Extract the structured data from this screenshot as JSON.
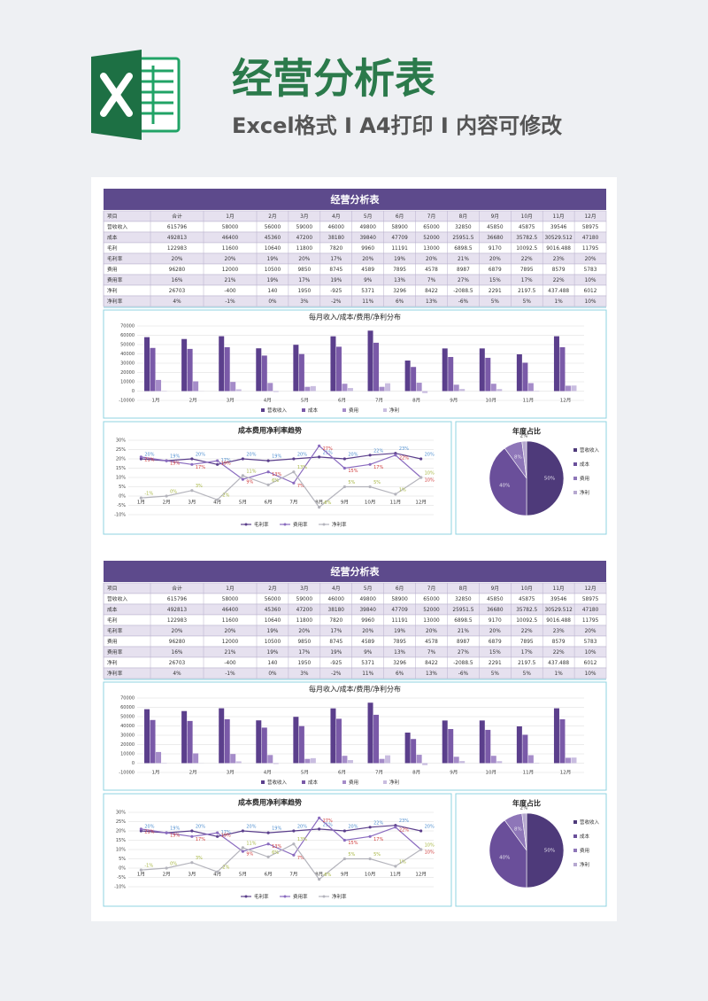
{
  "header": {
    "title": "经营分析表",
    "subtitle": "Excel格式 I A4打印 I 内容可修改"
  },
  "sheet": {
    "title": "经营分析表"
  },
  "table": {
    "rows": [
      [
        "项目",
        "合计",
        "1月",
        "2月",
        "3月",
        "4月",
        "5月",
        "6月",
        "7月",
        "8月",
        "9月",
        "10月",
        "11月",
        "12月"
      ],
      [
        "营收收入",
        615796,
        58000,
        56000,
        59000,
        46000,
        49800,
        58900,
        65000,
        32850,
        45850,
        45875,
        39546,
        58975
      ],
      [
        "成本",
        492813,
        46400,
        45360,
        47200,
        38180,
        39840,
        47709,
        52000,
        25951.5,
        36680,
        35782.5,
        30529.512,
        47180
      ],
      [
        "毛利",
        122983,
        11600,
        10640,
        11800,
        7820,
        9960,
        11191,
        13000,
        6898.5,
        9170,
        10092.5,
        9016.488,
        11795
      ],
      [
        "毛利率",
        "20%",
        "20%",
        "19%",
        "20%",
        "17%",
        "20%",
        "19%",
        "20%",
        "21%",
        "20%",
        "22%",
        "23%",
        "20%"
      ],
      [
        "费用",
        96280,
        12000,
        10500,
        9850,
        8745,
        4589,
        7895,
        4578,
        8987,
        6879,
        7895,
        8579,
        5783
      ],
      [
        "费用率",
        "16%",
        "21%",
        "19%",
        "17%",
        "19%",
        "9%",
        "13%",
        "7%",
        "27%",
        "15%",
        "17%",
        "22%",
        "10%"
      ],
      [
        "净利",
        26703,
        -400,
        140,
        1950,
        -925,
        5371,
        3296,
        8422,
        -2088.5,
        2291,
        2197.5,
        437.488,
        6012
      ],
      [
        "净利率",
        "4%",
        "-1%",
        "0%",
        "3%",
        "-2%",
        "11%",
        "6%",
        "13%",
        "-6%",
        "5%",
        "5%",
        "1%",
        "10%"
      ]
    ]
  },
  "chart_data": [
    {
      "type": "bar",
      "title": "每月收入/成本/费用/净利分布",
      "categories": [
        "1月",
        "2月",
        "3月",
        "4月",
        "5月",
        "6月",
        "7月",
        "8月",
        "9月",
        "10月",
        "11月",
        "12月"
      ],
      "series": [
        {
          "name": "营收收入",
          "color": "#5b3f8c",
          "values": [
            58000,
            56000,
            59000,
            46000,
            49800,
            58900,
            65000,
            32850,
            45850,
            45875,
            39546,
            58975
          ]
        },
        {
          "name": "成本",
          "color": "#7a5aa8",
          "values": [
            46400,
            45360,
            47200,
            38180,
            39840,
            47709,
            52000,
            25951.5,
            36680,
            35782.5,
            30529.512,
            47180
          ]
        },
        {
          "name": "费用",
          "color": "#a58cc9",
          "values": [
            12000,
            10500,
            9850,
            8745,
            4589,
            7895,
            4578,
            8987,
            6879,
            7895,
            8579,
            5783
          ]
        },
        {
          "name": "净利",
          "color": "#c9bde0",
          "values": [
            -400,
            140,
            1950,
            -925,
            5371,
            3296,
            8422,
            -2088.5,
            2291,
            2197.5,
            437.488,
            6012
          ]
        }
      ],
      "ylim": [
        -10000,
        70000
      ],
      "yticks": [
        -10000,
        0,
        10000,
        20000,
        30000,
        40000,
        50000,
        60000,
        70000
      ],
      "grid": true
    },
    {
      "type": "line",
      "title": "成本费用净利率趋势",
      "categories": [
        "1月",
        "2月",
        "3月",
        "4月",
        "5月",
        "6月",
        "7月",
        "8月",
        "9月",
        "10月",
        "11月",
        "12月"
      ],
      "series": [
        {
          "name": "毛利率",
          "color": "#5b3f8c",
          "label_color": "#4f8fd0",
          "values": [
            20,
            19,
            20,
            17,
            20,
            19,
            20,
            21,
            20,
            22,
            23,
            20
          ],
          "value_labels": [
            "20%",
            "19%",
            "20%",
            "17%",
            "20%",
            "19%",
            "20%",
            "21%",
            "20%",
            "22%",
            "23%",
            "20%"
          ]
        },
        {
          "name": "费用率",
          "color": "#8a6bbf",
          "label_color": "#d03a3a",
          "values": [
            21,
            19,
            17,
            19,
            9,
            13,
            7,
            27,
            15,
            17,
            22,
            10
          ],
          "value_labels": [
            "21%",
            "19%",
            "17%",
            "19%",
            "9%",
            "13%",
            "7%",
            "27%",
            "15%",
            "17%",
            "22%",
            "10%"
          ]
        },
        {
          "name": "净利率",
          "color": "#b4b4bc",
          "label_color": "#a5b53e",
          "values": [
            -1,
            0,
            3,
            -2,
            11,
            6,
            13,
            -6,
            5,
            5,
            1,
            10
          ],
          "value_labels": [
            "-1%",
            "0%",
            "3%",
            "-2%",
            "11%",
            "6%",
            "13%",
            "-6%",
            "5%",
            "5%",
            "1%",
            "10%"
          ]
        }
      ],
      "ylim": [
        -10,
        30
      ],
      "yticks": [
        {
          "value": -10,
          "label": "-10%"
        },
        {
          "value": -5,
          "label": "-5%"
        },
        {
          "value": 0,
          "label": "0%"
        },
        {
          "value": 5,
          "label": "5%"
        },
        {
          "value": 10,
          "label": "10%"
        },
        {
          "value": 15,
          "label": "15%"
        },
        {
          "value": 20,
          "label": "20%"
        },
        {
          "value": 25,
          "label": "25%"
        },
        {
          "value": 30,
          "label": "30%"
        }
      ],
      "grid": true
    },
    {
      "type": "pie",
      "title": "年度占比",
      "categories": [
        "营收收入",
        "成本",
        "费用",
        "净利"
      ],
      "values": [
        50,
        40,
        8,
        2
      ],
      "value_labels": [
        "50%",
        "40%",
        "8%",
        "2%"
      ],
      "colors": [
        "#4e3a7a",
        "#6a4f9a",
        "#8e76b8",
        "#b6a8d0"
      ]
    }
  ]
}
